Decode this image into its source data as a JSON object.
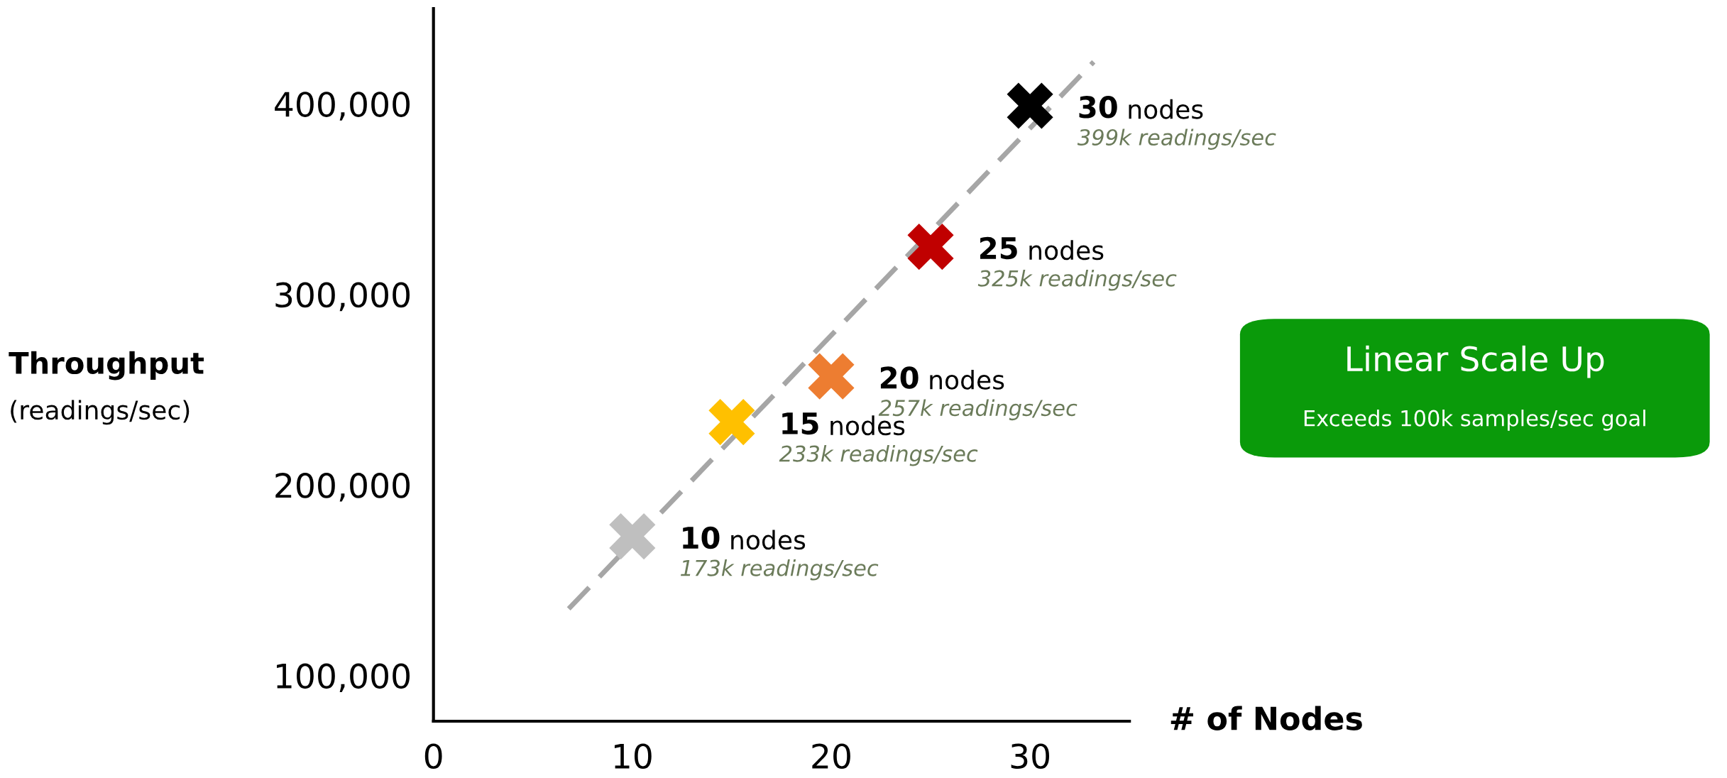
{
  "chart_data": {
    "type": "scatter",
    "xlabel": "# of Nodes",
    "ylabel": "Throughput\n(readings/sec)",
    "xlim": [
      0,
      35
    ],
    "ylim": [
      76000,
      450000
    ],
    "xticks": [
      0,
      10,
      20,
      30
    ],
    "yticks": [
      {
        "value": 100000,
        "label": "100,000"
      },
      {
        "value": 200000,
        "label": "200,000"
      },
      {
        "value": 300000,
        "label": "300,000"
      },
      {
        "value": 400000,
        "label": "400,000"
      }
    ],
    "grid": false,
    "series": [
      {
        "type": "line",
        "x": [
          6.8,
          33.2
        ],
        "values": [
          135000,
          422000
        ],
        "color": "#a6a6a6",
        "line_style": "dashed",
        "marker": "none"
      },
      {
        "x": [
          10,
          15,
          20,
          25,
          30
        ],
        "values": [
          173000,
          233000,
          257000,
          325000,
          399000
        ],
        "colors": [
          "#bfbfbf",
          "#ffc000",
          "#ed7d31",
          "#c00000",
          "#000000"
        ],
        "marker": "cross"
      }
    ],
    "annotations": [
      {
        "text": "10 nodes\n173k readings/sec",
        "x": 10,
        "y": 173000
      },
      {
        "text": "15 nodes\n233k readings/sec",
        "x": 15,
        "y": 233000
      },
      {
        "text": "20 nodes\n257k readings/sec",
        "x": 20,
        "y": 257000
      },
      {
        "text": "25 nodes\n325k readings/sec",
        "x": 25,
        "y": 325000
      },
      {
        "text": "30 nodes\n399k readings/sec",
        "x": 30,
        "y": 399000
      },
      "Linear Scale Up\nExceeds 100k samples/sec goal"
    ]
  }
}
